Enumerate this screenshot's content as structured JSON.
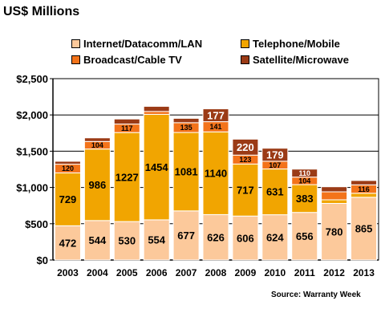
{
  "chart_data": {
    "type": "bar",
    "stacked": true,
    "title": "US$ Millions",
    "source": "Source: Warranty Week",
    "categories": [
      "2003",
      "2004",
      "2005",
      "2006",
      "2007",
      "2008",
      "2009",
      "2010",
      "2011",
      "2012",
      "2013"
    ],
    "series": [
      {
        "name": "Internet/Datacomm/LAN",
        "color": "#fcc99b",
        "values": [
          472,
          544,
          530,
          554,
          677,
          626,
          606,
          624,
          656,
          780,
          865
        ],
        "labels": [
          "472",
          "544",
          "530",
          "554",
          "677",
          "626",
          "606",
          "624",
          "656",
          "780",
          "865"
        ]
      },
      {
        "name": "Telephone/Mobile",
        "color": "#f1a501",
        "values": [
          729,
          986,
          1227,
          1454,
          1081,
          1140,
          717,
          631,
          383,
          50,
          55
        ],
        "labels": [
          "729",
          "986",
          "1227",
          "1454",
          "1081",
          "1140",
          "717",
          "631",
          "383",
          "",
          ""
        ]
      },
      {
        "name": "Broadcast/Cable TV",
        "color": "#f3731a",
        "values": [
          120,
          104,
          117,
          40,
          135,
          141,
          123,
          107,
          104,
          110,
          116
        ],
        "labels": [
          "120",
          "104",
          "117",
          "",
          "135",
          "141",
          "123",
          "107",
          "104",
          "",
          "116"
        ]
      },
      {
        "name": "Satellite/Microwave",
        "color": "#9b3b16",
        "values": [
          40,
          50,
          70,
          70,
          60,
          177,
          220,
          179,
          110,
          70,
          60
        ],
        "labels": [
          "",
          "",
          "",
          "",
          "",
          "177",
          "220",
          "179",
          "110",
          "",
          ""
        ]
      }
    ],
    "ylim": [
      0,
      2500
    ],
    "yticks": [
      0,
      500,
      1000,
      1500,
      2000,
      2500
    ],
    "ytick_labels": [
      "$0",
      "$500",
      "$1,000",
      "$1,500",
      "$2,000",
      "$2,500"
    ],
    "grid": true,
    "legend_position": "top"
  }
}
